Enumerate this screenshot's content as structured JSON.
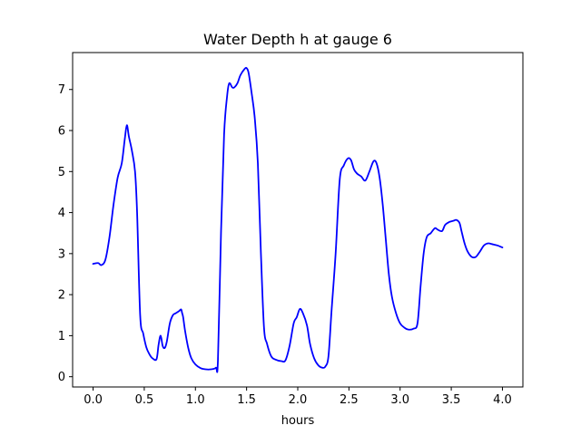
{
  "chart_data": {
    "type": "line",
    "title": "Water Depth h at gauge 6",
    "xlabel": "hours",
    "ylabel": "",
    "xlim": [
      -0.2,
      4.2
    ],
    "ylim": [
      -0.25,
      7.9
    ],
    "xticks": [
      0.0,
      0.5,
      1.0,
      1.5,
      2.0,
      2.5,
      3.0,
      3.5,
      4.0
    ],
    "xtick_labels": [
      "0.0",
      "0.5",
      "1.0",
      "1.5",
      "2.0",
      "2.5",
      "3.0",
      "3.5",
      "4.0"
    ],
    "yticks": [
      0,
      1,
      2,
      3,
      4,
      5,
      6,
      7
    ],
    "ytick_labels": [
      "0",
      "1",
      "2",
      "3",
      "4",
      "5",
      "6",
      "7"
    ],
    "grid": false,
    "legend": "none",
    "series": [
      {
        "color": "#0000ff",
        "x": [
          0.0,
          0.05,
          0.08,
          0.12,
          0.16,
          0.2,
          0.24,
          0.28,
          0.31,
          0.33,
          0.35,
          0.38,
          0.41,
          0.43,
          0.46,
          0.49,
          0.52,
          0.55,
          0.58,
          0.62,
          0.64,
          0.66,
          0.68,
          0.7,
          0.72,
          0.75,
          0.78,
          0.81,
          0.84,
          0.86,
          0.87,
          0.88,
          0.9,
          0.93,
          0.96,
          1.0,
          1.05,
          1.1,
          1.15,
          1.2,
          1.22,
          1.25,
          1.28,
          1.31,
          1.33,
          1.36,
          1.38,
          1.41,
          1.44,
          1.48,
          1.5,
          1.52,
          1.55,
          1.58,
          1.61,
          1.64,
          1.67,
          1.7,
          1.74,
          1.78,
          1.84,
          1.88,
          1.92,
          1.96,
          1.99,
          2.02,
          2.05,
          2.09,
          2.12,
          2.16,
          2.2,
          2.24,
          2.27,
          2.3,
          2.33,
          2.37,
          2.41,
          2.45,
          2.49,
          2.52,
          2.55,
          2.58,
          2.62,
          2.66,
          2.7,
          2.74,
          2.77,
          2.8,
          2.83,
          2.86,
          2.89,
          2.92,
          2.96,
          3.0,
          3.04,
          3.08,
          3.13,
          3.17,
          3.2,
          3.23,
          3.26,
          3.3,
          3.34,
          3.37,
          3.41,
          3.44,
          3.48,
          3.52,
          3.55,
          3.58,
          3.6,
          3.63,
          3.66,
          3.7,
          3.74,
          3.78,
          3.82,
          3.86,
          3.9,
          3.95,
          4.0
        ],
        "y": [
          2.75,
          2.77,
          2.72,
          2.85,
          3.4,
          4.2,
          4.85,
          5.2,
          5.8,
          6.13,
          5.85,
          5.5,
          5.0,
          4.0,
          1.5,
          1.05,
          0.72,
          0.55,
          0.45,
          0.43,
          0.78,
          1.0,
          0.75,
          0.7,
          0.85,
          1.3,
          1.5,
          1.55,
          1.6,
          1.64,
          1.55,
          1.45,
          1.1,
          0.7,
          0.45,
          0.3,
          0.21,
          0.18,
          0.18,
          0.22,
          0.4,
          3.5,
          5.9,
          6.85,
          7.15,
          7.05,
          7.05,
          7.15,
          7.35,
          7.5,
          7.52,
          7.4,
          6.9,
          6.3,
          5.2,
          3.0,
          1.2,
          0.8,
          0.5,
          0.42,
          0.38,
          0.4,
          0.75,
          1.3,
          1.45,
          1.65,
          1.55,
          1.25,
          0.8,
          0.45,
          0.28,
          0.22,
          0.25,
          0.5,
          1.6,
          3.0,
          4.8,
          5.15,
          5.32,
          5.28,
          5.05,
          4.95,
          4.88,
          4.78,
          5.0,
          5.25,
          5.2,
          4.85,
          4.2,
          3.35,
          2.5,
          1.95,
          1.55,
          1.3,
          1.2,
          1.15,
          1.17,
          1.3,
          2.2,
          3.0,
          3.4,
          3.5,
          3.62,
          3.58,
          3.55,
          3.7,
          3.77,
          3.8,
          3.82,
          3.75,
          3.55,
          3.25,
          3.05,
          2.92,
          2.92,
          3.05,
          3.2,
          3.25,
          3.23,
          3.2,
          3.15
        ]
      }
    ]
  }
}
